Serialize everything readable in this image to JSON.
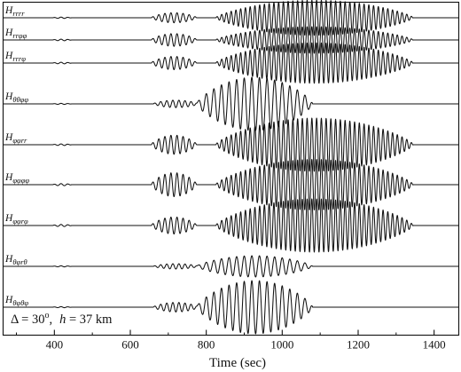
{
  "chart_data": {
    "type": "line",
    "title": "",
    "xlabel": "Time (sec)",
    "ylabel": "",
    "xlim": [
      265,
      1465
    ],
    "xticks": [
      400,
      600,
      800,
      1000,
      1200,
      1400
    ],
    "grid": false,
    "legend": "none",
    "annotation": {
      "delta_symbol": "Δ",
      "delta_value": "30",
      "degree": "o",
      "h_symbol": "h",
      "h_value": "37 km",
      "separator": ",",
      "equals": " = "
    },
    "series": [
      {
        "name": "Hrrrr",
        "label_main": "H",
        "label_sub": "rrrr",
        "packets": [
          {
            "start": 395,
            "end": 445,
            "amp": 0.025,
            "period": 18
          },
          {
            "start": 655,
            "end": 775,
            "amp": 0.19,
            "period": 16
          },
          {
            "start": 825,
            "end": 1345,
            "amp": 0.66,
            "period": 12.5
          }
        ]
      },
      {
        "name": "Hrrφφ",
        "label_main": "H",
        "label_sub": "rrφφ",
        "packets": [
          {
            "start": 395,
            "end": 445,
            "amp": 0.03,
            "period": 18
          },
          {
            "start": 655,
            "end": 775,
            "amp": 0.24,
            "period": 16
          },
          {
            "start": 825,
            "end": 1345,
            "amp": 0.5,
            "period": 12.5
          }
        ]
      },
      {
        "name": "Hrrrφ",
        "label_main": "H",
        "label_sub": "rrrφ",
        "packets": [
          {
            "start": 395,
            "end": 445,
            "amp": 0.03,
            "period": 18
          },
          {
            "start": 655,
            "end": 775,
            "amp": 0.25,
            "period": 16
          },
          {
            "start": 825,
            "end": 1345,
            "amp": 0.76,
            "period": 12.5
          }
        ]
      },
      {
        "name": "Hθθφφ",
        "label_main": "H",
        "label_sub": "θθφφ",
        "packets": [
          {
            "start": 395,
            "end": 445,
            "amp": 0.02,
            "period": 18
          },
          {
            "start": 660,
            "end": 780,
            "amp": 0.14,
            "period": 16
          },
          {
            "start": 775,
            "end": 1080,
            "amp": 1.0,
            "period": 20
          }
        ]
      },
      {
        "name": "Hφφrr",
        "label_main": "H",
        "label_sub": "φφrr",
        "packets": [
          {
            "start": 395,
            "end": 445,
            "amp": 0.03,
            "period": 18
          },
          {
            "start": 655,
            "end": 775,
            "amp": 0.36,
            "period": 16
          },
          {
            "start": 825,
            "end": 1345,
            "amp": 1.0,
            "period": 12.5
          }
        ]
      },
      {
        "name": "Hφφφφ",
        "label_main": "H",
        "label_sub": "φφφφ",
        "packets": [
          {
            "start": 395,
            "end": 445,
            "amp": 0.04,
            "period": 18
          },
          {
            "start": 655,
            "end": 775,
            "amp": 0.45,
            "period": 16
          },
          {
            "start": 825,
            "end": 1345,
            "amp": 0.95,
            "period": 12.5
          }
        ]
      },
      {
        "name": "Hφφrφ",
        "label_main": "H",
        "label_sub": "φφrφ",
        "packets": [
          {
            "start": 395,
            "end": 445,
            "amp": 0.04,
            "period": 18
          },
          {
            "start": 655,
            "end": 775,
            "amp": 0.32,
            "period": 16
          },
          {
            "start": 825,
            "end": 1345,
            "amp": 1.0,
            "period": 12.5
          }
        ]
      },
      {
        "name": "Hθφrθ",
        "label_main": "H",
        "label_sub": "θφrθ",
        "packets": [
          {
            "start": 395,
            "end": 445,
            "amp": 0.02,
            "period": 18
          },
          {
            "start": 660,
            "end": 780,
            "amp": 0.1,
            "period": 16
          },
          {
            "start": 775,
            "end": 1080,
            "amp": 0.4,
            "period": 20
          }
        ]
      },
      {
        "name": "Hθφθφ",
        "label_main": "H",
        "label_sub": "θφθφ",
        "packets": [
          {
            "start": 395,
            "end": 445,
            "amp": 0.02,
            "period": 18
          },
          {
            "start": 660,
            "end": 780,
            "amp": 0.18,
            "period": 16
          },
          {
            "start": 775,
            "end": 1080,
            "amp": 1.0,
            "period": 20
          }
        ]
      }
    ]
  }
}
